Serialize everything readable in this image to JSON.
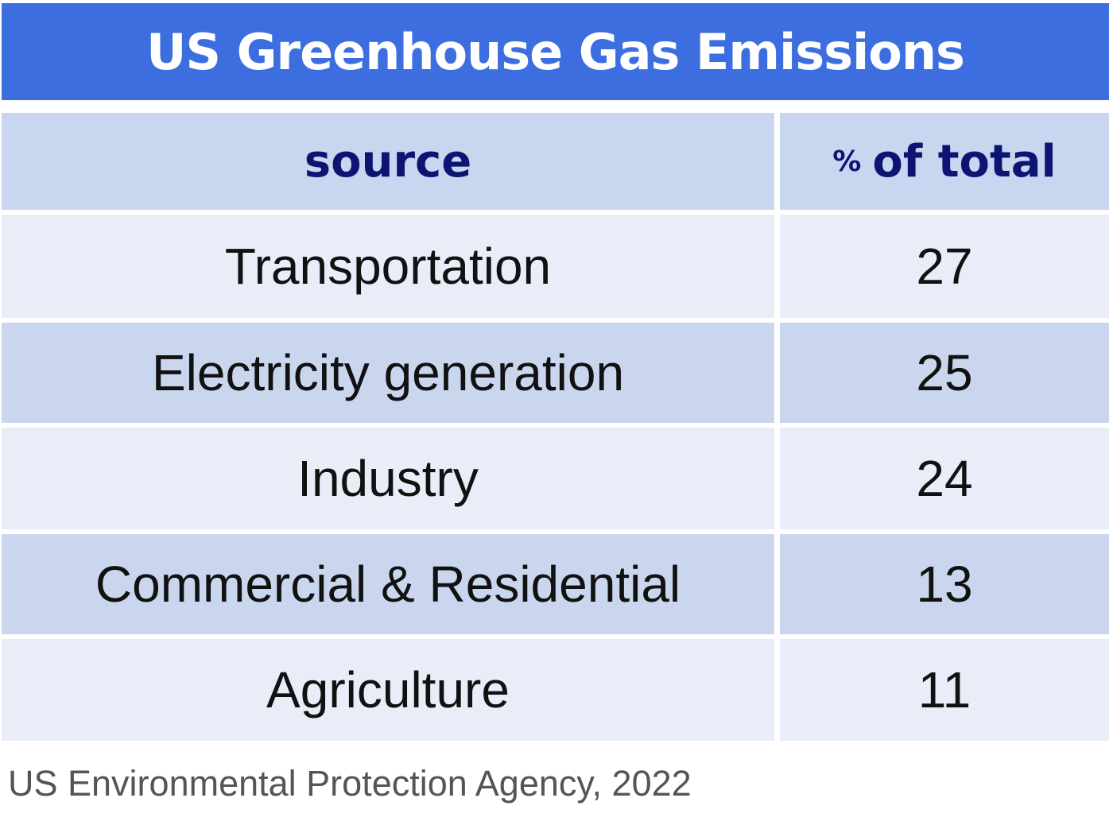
{
  "chart_data": {
    "type": "table",
    "title": "US Greenhouse Gas Emissions",
    "columns": [
      "source",
      "% of total"
    ],
    "column_parts": {
      "pct": "%",
      "rest": "of total"
    },
    "rows": [
      {
        "source": "Transportation",
        "value": "27"
      },
      {
        "source": "Electricity generation",
        "value": "25"
      },
      {
        "source": "Industry",
        "value": "24"
      },
      {
        "source": "Commercial & Residential",
        "value": "13"
      },
      {
        "source": "Agriculture",
        "value": "11"
      }
    ],
    "footnote": "US Environmental Protection Agency, 2022"
  },
  "colors": {
    "title_bg": "#3c6ee0",
    "header_bg": "#c8d6ef",
    "header_text": "#0d1573",
    "row_light": "#e8edf7",
    "row_dark": "#c9d6ee"
  }
}
